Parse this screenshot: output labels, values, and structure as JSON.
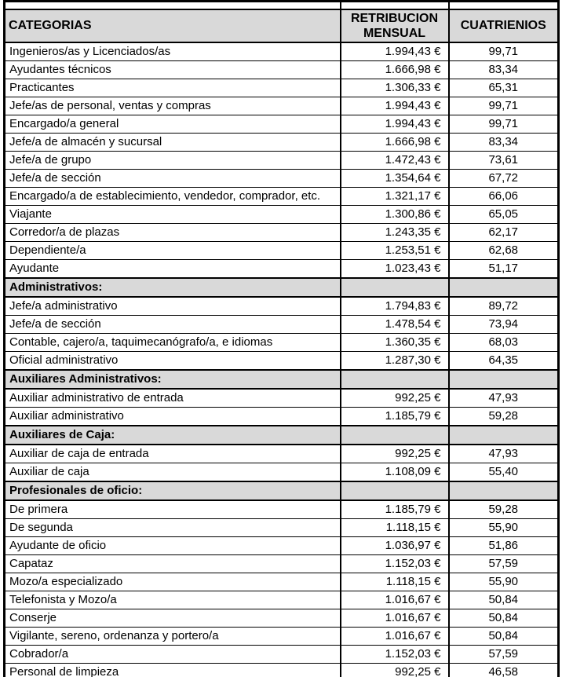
{
  "colors": {
    "page_bg": "#ffffff",
    "header_bg": "#d9d9d9",
    "section_bg": "#d9d9d9",
    "border": "#000000",
    "text": "#000000"
  },
  "table": {
    "columns": [
      "CATEGORIAS",
      "RETRIBUCION MENSUAL",
      "CUATRIENIOS"
    ],
    "rows": [
      {
        "type": "data",
        "categoria": "Ingenieros/as y Licenciados/as",
        "retribucion": "1.994,43 €",
        "cuatrienios": "99,71"
      },
      {
        "type": "data",
        "categoria": "Ayudantes técnicos",
        "retribucion": "1.666,98 €",
        "cuatrienios": "83,34"
      },
      {
        "type": "data",
        "categoria": "Practicantes",
        "retribucion": "1.306,33 €",
        "cuatrienios": "65,31"
      },
      {
        "type": "data",
        "categoria": "Jefe/as de personal, ventas y compras",
        "retribucion": "1.994,43 €",
        "cuatrienios": "99,71"
      },
      {
        "type": "data",
        "categoria": "Encargado/a general",
        "retribucion": "1.994,43 €",
        "cuatrienios": "99,71"
      },
      {
        "type": "data",
        "categoria": "Jefe/a de almacén y sucursal",
        "retribucion": "1.666,98 €",
        "cuatrienios": "83,34"
      },
      {
        "type": "data",
        "categoria": "Jefe/a de grupo",
        "retribucion": "1.472,43 €",
        "cuatrienios": "73,61"
      },
      {
        "type": "data",
        "categoria": "Jefe/a de sección",
        "retribucion": "1.354,64 €",
        "cuatrienios": "67,72"
      },
      {
        "type": "data",
        "categoria": "Encargado/a de establecimiento, vendedor, comprador, etc.",
        "retribucion": "1.321,17 €",
        "cuatrienios": "66,06"
      },
      {
        "type": "data",
        "categoria": "Viajante",
        "retribucion": "1.300,86 €",
        "cuatrienios": "65,05"
      },
      {
        "type": "data",
        "categoria": "Corredor/a de plazas",
        "retribucion": "1.243,35 €",
        "cuatrienios": "62,17"
      },
      {
        "type": "data",
        "categoria": "Dependiente/a",
        "retribucion": "1.253,51 €",
        "cuatrienios": "62,68"
      },
      {
        "type": "data",
        "categoria": "Ayudante",
        "retribucion": "1.023,43 €",
        "cuatrienios": "51,17"
      },
      {
        "type": "section",
        "categoria": "Administrativos:",
        "retribucion": "",
        "cuatrienios": ""
      },
      {
        "type": "data",
        "categoria": "Jefe/a administrativo",
        "retribucion": "1.794,83 €",
        "cuatrienios": "89,72"
      },
      {
        "type": "data",
        "categoria": "Jefe/a de sección",
        "retribucion": "1.478,54 €",
        "cuatrienios": "73,94"
      },
      {
        "type": "data",
        "categoria": "Contable, cajero/a, taquimecanógrafo/a, e idiomas",
        "retribucion": "1.360,35 €",
        "cuatrienios": "68,03"
      },
      {
        "type": "data",
        "categoria": "Oficial administrativo",
        "retribucion": "1.287,30 €",
        "cuatrienios": "64,35"
      },
      {
        "type": "section",
        "categoria": "Auxiliares Administrativos:",
        "retribucion": "",
        "cuatrienios": ""
      },
      {
        "type": "data",
        "categoria": "Auxiliar administrativo de entrada",
        "retribucion": "992,25 €",
        "cuatrienios": "47,93"
      },
      {
        "type": "data",
        "categoria": "Auxiliar administrativo",
        "retribucion": "1.185,79 €",
        "cuatrienios": "59,28"
      },
      {
        "type": "section",
        "categoria": "Auxiliares de Caja:",
        "retribucion": "",
        "cuatrienios": ""
      },
      {
        "type": "data",
        "categoria": "Auxiliar de caja de entrada",
        "retribucion": "992,25 €",
        "cuatrienios": "47,93"
      },
      {
        "type": "data",
        "categoria": "Auxiliar de caja",
        "retribucion": "1.108,09 €",
        "cuatrienios": "55,40"
      },
      {
        "type": "section",
        "categoria": "Profesionales de oficio:",
        "retribucion": "",
        "cuatrienios": ""
      },
      {
        "type": "data",
        "categoria": "De primera",
        "retribucion": "1.185,79 €",
        "cuatrienios": "59,28"
      },
      {
        "type": "data",
        "categoria": "De segunda",
        "retribucion": "1.118,15 €",
        "cuatrienios": "55,90"
      },
      {
        "type": "data",
        "categoria": "Ayudante de oficio",
        "retribucion": "1.036,97 €",
        "cuatrienios": "51,86"
      },
      {
        "type": "data",
        "categoria": "Capataz",
        "retribucion": "1.152,03 €",
        "cuatrienios": "57,59"
      },
      {
        "type": "data",
        "categoria": "Mozo/a especializado",
        "retribucion": "1.118,15 €",
        "cuatrienios": "55,90"
      },
      {
        "type": "data",
        "categoria": "Telefonista y Mozo/a",
        "retribucion": "1.016,67 €",
        "cuatrienios": "50,84"
      },
      {
        "type": "data",
        "categoria": "Conserje",
        "retribucion": "1.016,67 €",
        "cuatrienios": "50,84"
      },
      {
        "type": "data",
        "categoria": "Vigilante, sereno, ordenanza y portero/a",
        "retribucion": "1.016,67 €",
        "cuatrienios": "50,84"
      },
      {
        "type": "data",
        "categoria": "Cobrador/a",
        "retribucion": "1.152,03 €",
        "cuatrienios": "57,59"
      },
      {
        "type": "data",
        "categoria": "Personal de limpieza",
        "retribucion": "992,25 €",
        "cuatrienios": "46,58"
      }
    ]
  }
}
